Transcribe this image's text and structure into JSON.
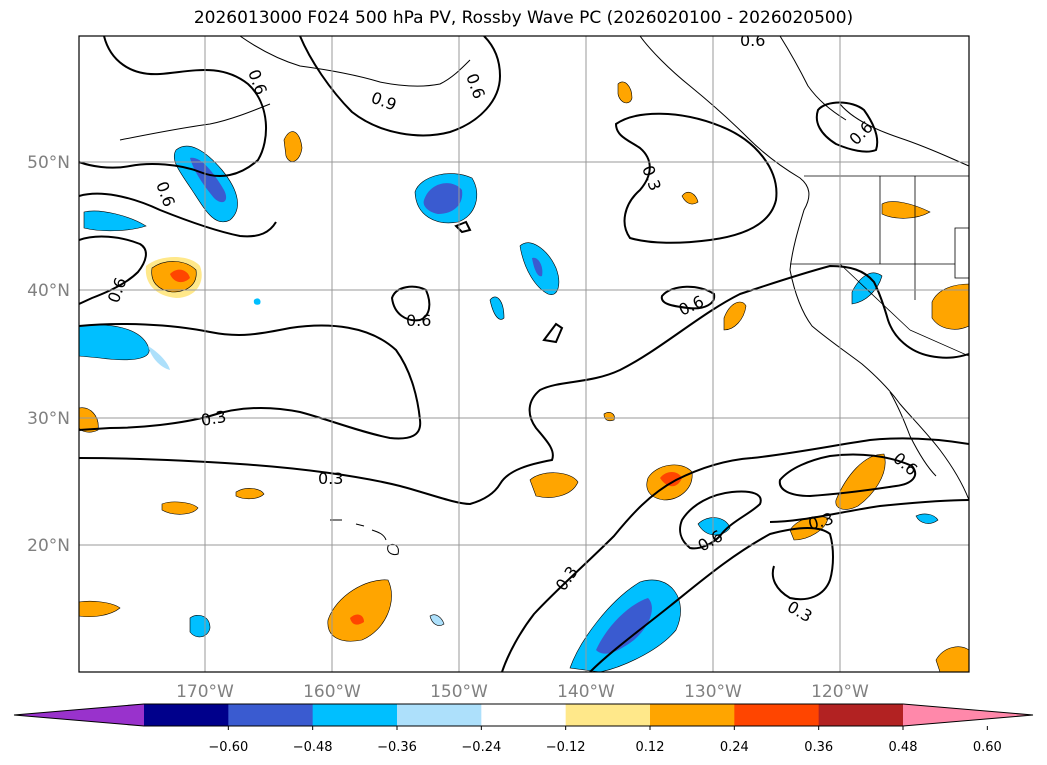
{
  "title": "2026013000 F024 500 hPa PV, Rossby Wave PC (2026020100 - 2026020500)",
  "map": {
    "lat_labels": [
      "50°N",
      "40°N",
      "30°N",
      "20°N"
    ],
    "lon_labels": [
      "170°W",
      "160°W",
      "150°W",
      "140°W",
      "130°W",
      "120°W"
    ],
    "contour_labels": [
      "0.6",
      "0.9",
      "0.6",
      "0.6",
      "0.3",
      "0.6",
      "0.6",
      "0.6",
      "0.6",
      "0.6",
      "0.3",
      "0.3",
      "0.3",
      "0.6",
      "0.3",
      "0.6",
      "0.3"
    ]
  },
  "colorbar": {
    "ticks": [
      "−0.60",
      "−0.48",
      "−0.36",
      "−0.24",
      "−0.12",
      "0.12",
      "0.24",
      "0.36",
      "0.48",
      "0.60"
    ],
    "colors": [
      "#9932CC",
      "#00008B",
      "#3A5BD0",
      "#00BFFF",
      "#ADE0FB",
      "#FFFFFF",
      "#FFE88A",
      "#FFA500",
      "#FF4500",
      "#B22222",
      "#FF88AA"
    ]
  }
}
